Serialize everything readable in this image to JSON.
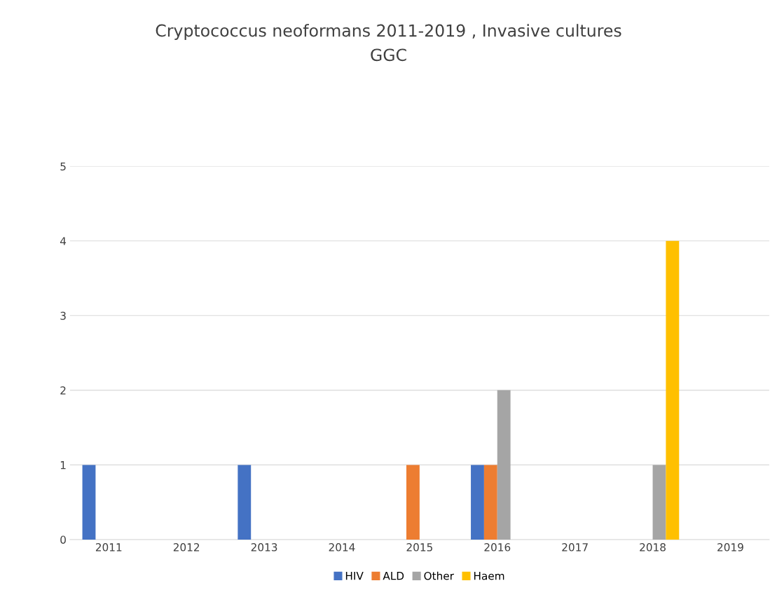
{
  "chart_data": {
    "type": "bar",
    "title": "Cryptococcus neoformans 2011-2019 , Invasive cultures",
    "subtitle": "GGC",
    "categories": [
      "2011",
      "2012",
      "2013",
      "2014",
      "2015",
      "2016",
      "2017",
      "2018",
      "2019"
    ],
    "series": [
      {
        "name": "HIV",
        "color": "#4472c4",
        "values": [
          1,
          0,
          1,
          0,
          0,
          1,
          0,
          0,
          0
        ]
      },
      {
        "name": "ALD",
        "color": "#ed7d31",
        "values": [
          0,
          0,
          0,
          0,
          1,
          1,
          0,
          0,
          0
        ]
      },
      {
        "name": "Other",
        "color": "#a5a5a5",
        "values": [
          0,
          0,
          0,
          0,
          0,
          2,
          0,
          1,
          0
        ]
      },
      {
        "name": "Haem",
        "color": "#ffc000",
        "values": [
          0,
          0,
          0,
          0,
          0,
          0,
          0,
          4,
          0
        ]
      }
    ],
    "ylim": [
      0,
      5
    ],
    "yticks": [
      0,
      1,
      2,
      3,
      4,
      5
    ],
    "grid": "y",
    "legend": "bottom"
  }
}
